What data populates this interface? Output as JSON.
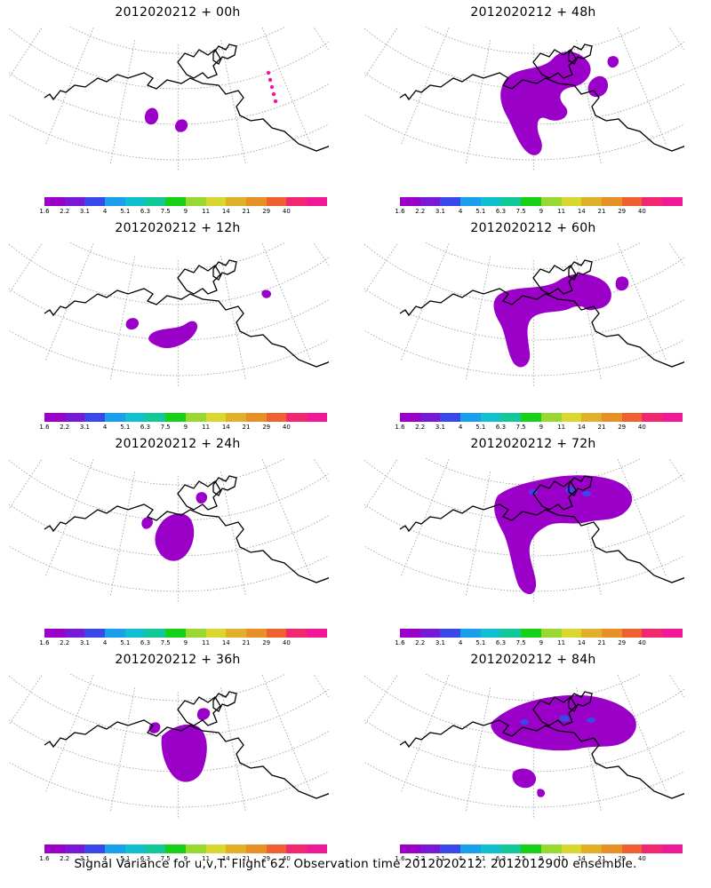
{
  "footer": "Signal Variance for u,v,T. Flight 62. Observation time 2012020212. 2012012900 ensemble.",
  "colorbar": {
    "colors": [
      "#9a00c8",
      "#7a18d8",
      "#3a48ea",
      "#1aa0ea",
      "#10c0d0",
      "#10c898",
      "#18d018",
      "#98d830",
      "#d8d830",
      "#e0b028",
      "#e89028",
      "#f06030",
      "#f02870",
      "#f01898"
    ],
    "labels": [
      "1.6",
      "2.2",
      "3.1",
      "4",
      "5.1",
      "6.3",
      "7.5",
      "9",
      "11",
      "14",
      "21",
      "29",
      "40"
    ]
  },
  "panels": [
    {
      "title": "2012020212 + 00h"
    },
    {
      "title": "2012020212 + 48h"
    },
    {
      "title": "2012020212 + 12h"
    },
    {
      "title": "2012020212 + 60h"
    },
    {
      "title": "2012020212 + 24h"
    },
    {
      "title": "2012020212 + 72h"
    },
    {
      "title": "2012020212 + 36h"
    },
    {
      "title": "2012020212 + 84h"
    }
  ]
}
